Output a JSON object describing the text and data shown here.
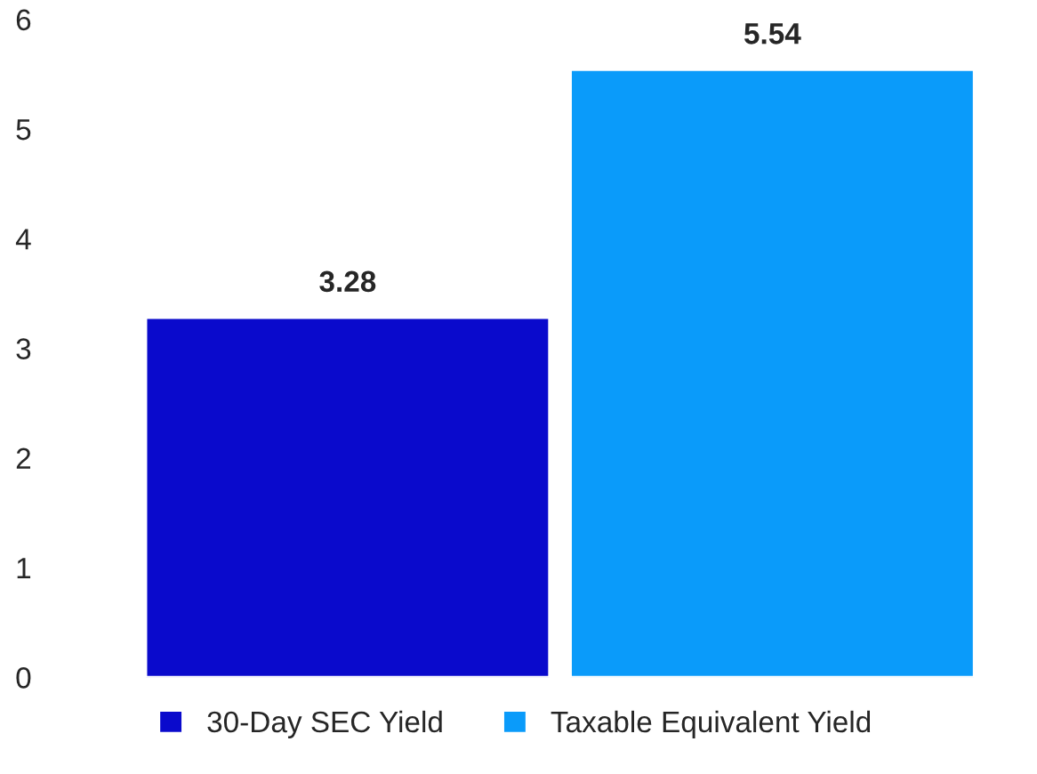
{
  "chart_data": {
    "type": "bar",
    "categories": [
      null,
      null
    ],
    "series": [
      {
        "name": "30-Day SEC Yield",
        "color": "#0a0acc",
        "values": [
          3.28,
          null
        ]
      },
      {
        "name": "Taxable Equivalent Yield",
        "color": "#0a9bfa",
        "values": [
          null,
          5.54
        ]
      }
    ],
    "ylim": [
      0,
      6
    ],
    "yticks": [
      0,
      1,
      2,
      3,
      4,
      5,
      6
    ],
    "stacked": true,
    "data_labels": true,
    "grid": false,
    "legend": "bottom"
  }
}
